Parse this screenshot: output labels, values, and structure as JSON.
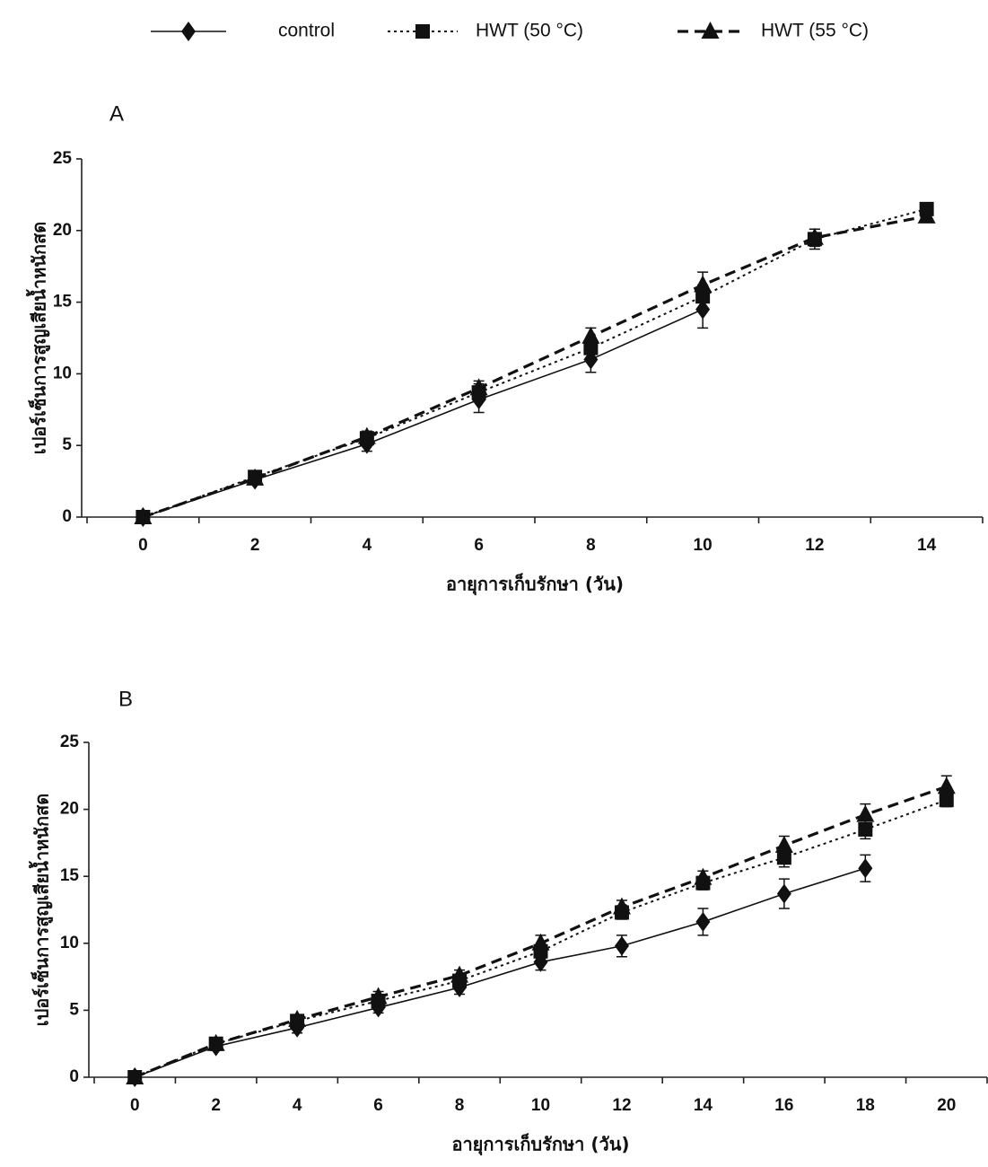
{
  "chart_data": [
    {
      "type": "line",
      "title": "A",
      "x_label": "อายุการเก็บรักษา (วัน)",
      "y_label": "เปอร์เซ็นการสูญเสียน้ำหนักสด",
      "categories": [
        "0",
        "2",
        "4",
        "6",
        "8",
        "10",
        "12",
        "14"
      ],
      "ylim": [
        0,
        25
      ],
      "yticks": [
        0,
        5,
        10,
        15,
        20,
        25
      ],
      "series": [
        {
          "name": "control",
          "color": "#111111",
          "line_style": "solid",
          "marker": "diamond",
          "values": [
            0,
            2.6,
            5.1,
            8.2,
            11.0,
            14.5,
            null,
            null
          ],
          "errors": [
            0.3,
            0.3,
            0.5,
            0.9,
            0.9,
            1.3,
            null,
            null
          ]
        },
        {
          "name": "HWT (50 °C)",
          "color": "#111111",
          "line_style": "dotted",
          "marker": "square",
          "values": [
            0,
            2.8,
            5.5,
            8.7,
            11.8,
            15.4,
            19.4,
            21.5
          ],
          "errors": [
            0.2,
            0.3,
            0.4,
            0.6,
            0.7,
            0.8,
            0.7,
            0.4
          ]
        },
        {
          "name": "HWT (55 °C)",
          "color": "#111111",
          "line_style": "dashed",
          "marker": "triangle",
          "values": [
            0,
            2.7,
            5.6,
            9.0,
            12.6,
            16.2,
            19.5,
            21.0
          ],
          "errors": [
            0.3,
            0.3,
            0.4,
            0.5,
            0.6,
            0.9,
            0.6,
            0.4
          ]
        }
      ]
    },
    {
      "type": "line",
      "title": "B",
      "x_label": "อายุการเก็บรักษา (วัน)",
      "y_label": "เปอร์เซ็นการสูญเสียน้ำหนักสด",
      "categories": [
        "0",
        "2",
        "4",
        "6",
        "8",
        "10",
        "12",
        "14",
        "16",
        "18",
        "20"
      ],
      "ylim": [
        0,
        25
      ],
      "yticks": [
        0,
        5,
        10,
        15,
        20,
        25
      ],
      "series": [
        {
          "name": "control",
          "color": "#111111",
          "line_style": "solid",
          "marker": "diamond",
          "values": [
            0,
            2.3,
            3.7,
            5.2,
            6.7,
            8.6,
            9.8,
            11.6,
            13.7,
            15.6,
            null
          ],
          "errors": [
            0.2,
            0.3,
            0.4,
            0.4,
            0.5,
            0.6,
            0.8,
            1.0,
            1.1,
            1.0,
            null
          ]
        },
        {
          "name": "HWT (50 °C)",
          "color": "#111111",
          "line_style": "dotted",
          "marker": "square",
          "values": [
            0,
            2.5,
            4.2,
            5.7,
            7.2,
            9.4,
            12.3,
            14.5,
            16.4,
            18.5,
            20.7
          ],
          "errors": [
            0.2,
            0.3,
            0.3,
            0.4,
            0.4,
            0.5,
            0.5,
            0.5,
            0.7,
            0.7,
            0.5
          ]
        },
        {
          "name": "HWT (55 °C)",
          "color": "#111111",
          "line_style": "dashed",
          "marker": "triangle",
          "values": [
            0,
            2.5,
            4.3,
            6.0,
            7.6,
            10.0,
            12.7,
            14.9,
            17.3,
            19.6,
            21.7
          ],
          "errors": [
            0.2,
            0.3,
            0.3,
            0.4,
            0.4,
            0.6,
            0.5,
            0.5,
            0.7,
            0.8,
            0.8
          ]
        }
      ]
    }
  ]
}
